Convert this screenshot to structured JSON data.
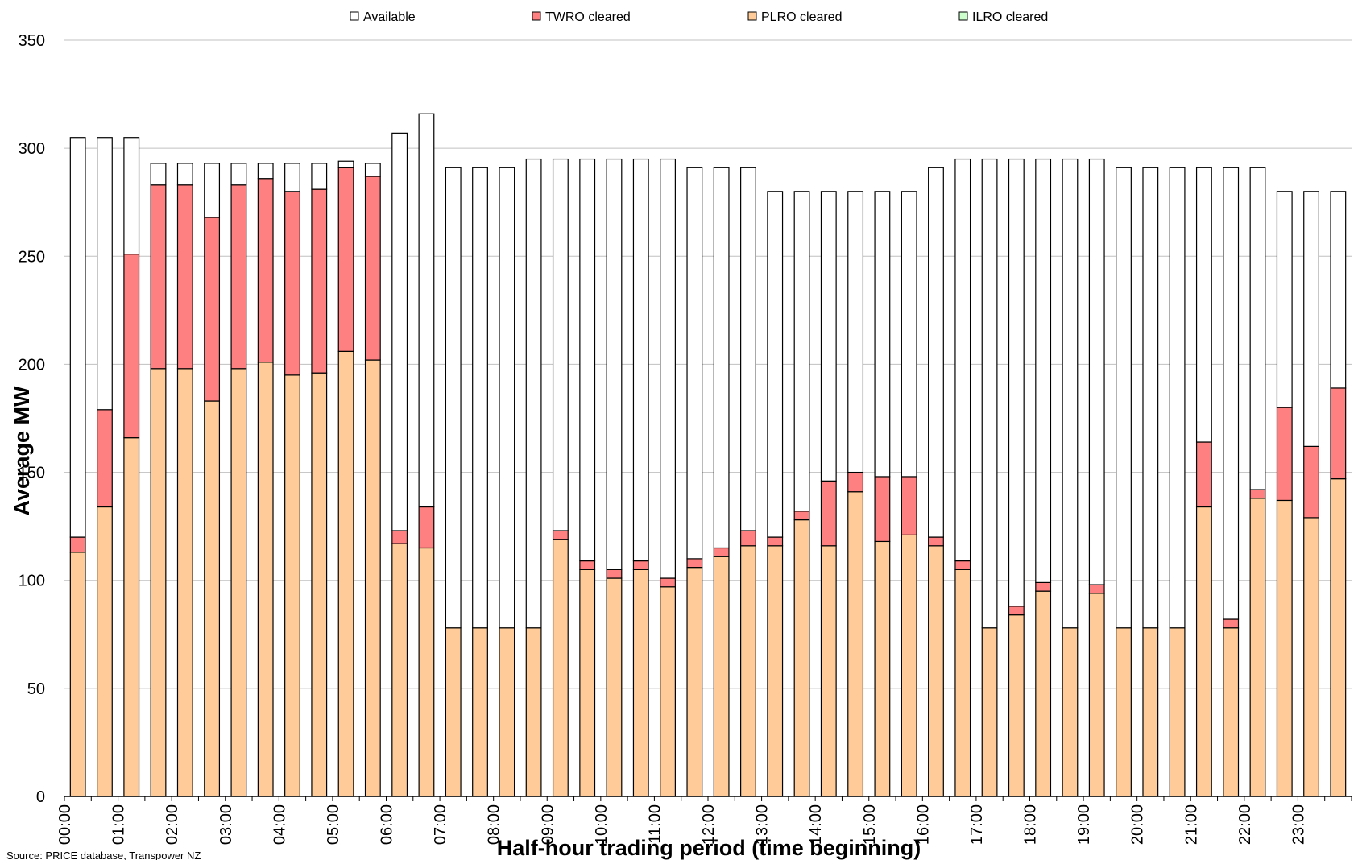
{
  "chart_data": {
    "type": "bar",
    "stacked": true,
    "title": "",
    "xlabel": "Half-hour trading period (time beginning)",
    "ylabel": "Average MW",
    "ylim": [
      0,
      350
    ],
    "yticks": [
      0,
      50,
      100,
      150,
      200,
      250,
      300,
      350
    ],
    "grid": true,
    "legend_position": "top",
    "source_note": "Source: PRICE database, Transpower NZ",
    "categories": [
      "00:00",
      "00:30",
      "01:00",
      "01:30",
      "02:00",
      "02:30",
      "03:00",
      "03:30",
      "04:00",
      "04:30",
      "05:00",
      "05:30",
      "06:00",
      "06:30",
      "07:00",
      "07:30",
      "08:00",
      "08:30",
      "09:00",
      "09:30",
      "10:00",
      "10:30",
      "11:00",
      "11:30",
      "12:00",
      "12:30",
      "13:00",
      "13:30",
      "14:00",
      "14:30",
      "15:00",
      "15:30",
      "16:00",
      "16:30",
      "17:00",
      "17:30",
      "18:00",
      "18:30",
      "19:00",
      "19:30",
      "20:00",
      "20:30",
      "21:00",
      "21:30",
      "22:00",
      "22:30",
      "23:00",
      "23:30"
    ],
    "tick_labels": [
      "00:00",
      "",
      "01:00",
      "",
      "02:00",
      "",
      "03:00",
      "",
      "04:00",
      "",
      "05:00",
      "",
      "06:00",
      "",
      "07:00",
      "",
      "08:00",
      "",
      "09:00",
      "",
      "10:00",
      "",
      "11:00",
      "",
      "12:00",
      "",
      "13:00",
      "",
      "14:00",
      "",
      "15:00",
      "",
      "16:00",
      "",
      "17:00",
      "",
      "18:00",
      "",
      "19:00",
      "",
      "20:00",
      "",
      "21:00",
      "",
      "22:00",
      "",
      "23:00",
      ""
    ],
    "series": [
      {
        "name": "PLRO cleared",
        "values": [
          113,
          134,
          166,
          198,
          198,
          183,
          198,
          201,
          195,
          196,
          206,
          202,
          117,
          115,
          78,
          78,
          78,
          78,
          119,
          105,
          101,
          105,
          97,
          106,
          111,
          116,
          116,
          128,
          116,
          141,
          118,
          121,
          116,
          105,
          78,
          84,
          95,
          78,
          94,
          78,
          78,
          78,
          134,
          78,
          138,
          137,
          129,
          147
        ]
      },
      {
        "name": "TWRO cleared",
        "values": [
          7,
          45,
          85,
          85,
          85,
          85,
          85,
          85,
          85,
          85,
          85,
          85,
          6,
          19,
          0,
          0,
          0,
          0,
          4,
          4,
          4,
          4,
          4,
          4,
          4,
          7,
          4,
          4,
          30,
          9,
          30,
          27,
          4,
          4,
          0,
          4,
          4,
          0,
          4,
          0,
          0,
          0,
          30,
          4,
          4,
          43,
          33,
          42
        ]
      },
      {
        "name": "ILRO cleared",
        "values": [
          0,
          0,
          0,
          0,
          0,
          0,
          0,
          0,
          0,
          0,
          0,
          0,
          0,
          0,
          0,
          0,
          0,
          0,
          0,
          0,
          0,
          0,
          0,
          0,
          0,
          0,
          0,
          0,
          0,
          0,
          0,
          0,
          0,
          0,
          0,
          0,
          0,
          0,
          0,
          0,
          0,
          0,
          0,
          0,
          0,
          0,
          0,
          0
        ]
      },
      {
        "name": "Available",
        "values": [
          185,
          126,
          54,
          10,
          10,
          25,
          10,
          7,
          13,
          12,
          3,
          6,
          184,
          182,
          213,
          213,
          213,
          217,
          172,
          186,
          190,
          186,
          194,
          181,
          176,
          168,
          160,
          148,
          134,
          130,
          132,
          132,
          171,
          186,
          217,
          207,
          196,
          217,
          197,
          213,
          213,
          213,
          127,
          209,
          149,
          100,
          118,
          91
        ]
      }
    ],
    "legend": [
      "Available",
      "TWRO cleared",
      "PLRO cleared",
      "ILRO cleared"
    ],
    "colors": {
      "Available": "#ffffff",
      "TWRO cleared": "#ff8080",
      "PLRO cleared": "#ffcc99",
      "ILRO cleared": "#ccffcc"
    }
  }
}
